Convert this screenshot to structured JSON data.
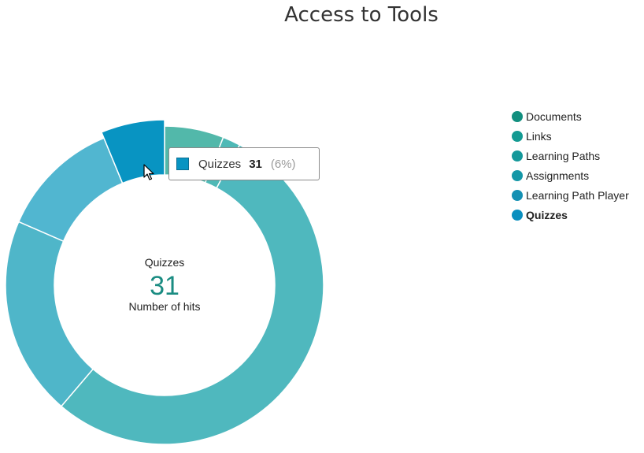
{
  "title": "Access to Tools",
  "chart_data": {
    "type": "pie",
    "variant": "donut",
    "title": "Access to Tools",
    "categories": [
      "Documents",
      "Links",
      "Learning Paths",
      "Assignments",
      "Learning Path Player",
      "Quizzes"
    ],
    "values": [
      30,
      9,
      266,
      101,
      61,
      31
    ],
    "units": "Number of hits",
    "start_category": "Documents",
    "direction": "clockwise from top",
    "highlighted": "Quizzes",
    "legend_position": "right"
  },
  "colors": {
    "Documents": "#52b8aa",
    "Links": "#4eb9b6",
    "Learning Paths": "#4fb8be",
    "Assignments": "#4fb6c9",
    "Learning Path Player": "#51b6d0",
    "Quizzes": "#0894c2",
    "legend_dots": [
      "#128f7f",
      "#139a92",
      "#14989a",
      "#1497a7",
      "#1490b3",
      "#0a8fbf"
    ],
    "center_value": "#1a8c82"
  },
  "center": {
    "label": "Quizzes",
    "value": "31",
    "caption": "Number of hits"
  },
  "tooltip": {
    "label": "Quizzes",
    "value": "31",
    "percent": "(6%)",
    "swatch_color": "#0894c2"
  },
  "legend": {
    "items": [
      {
        "label": "Documents",
        "color": "#128f7f",
        "active": false
      },
      {
        "label": "Links",
        "color": "#139a92",
        "active": false
      },
      {
        "label": "Learning Paths",
        "color": "#14989a",
        "active": false
      },
      {
        "label": "Assignments",
        "color": "#1497a7",
        "active": false
      },
      {
        "label": "Learning Path Player",
        "color": "#1490b3",
        "active": false
      },
      {
        "label": "Quizzes",
        "color": "#0a8fbf",
        "active": true
      }
    ]
  }
}
